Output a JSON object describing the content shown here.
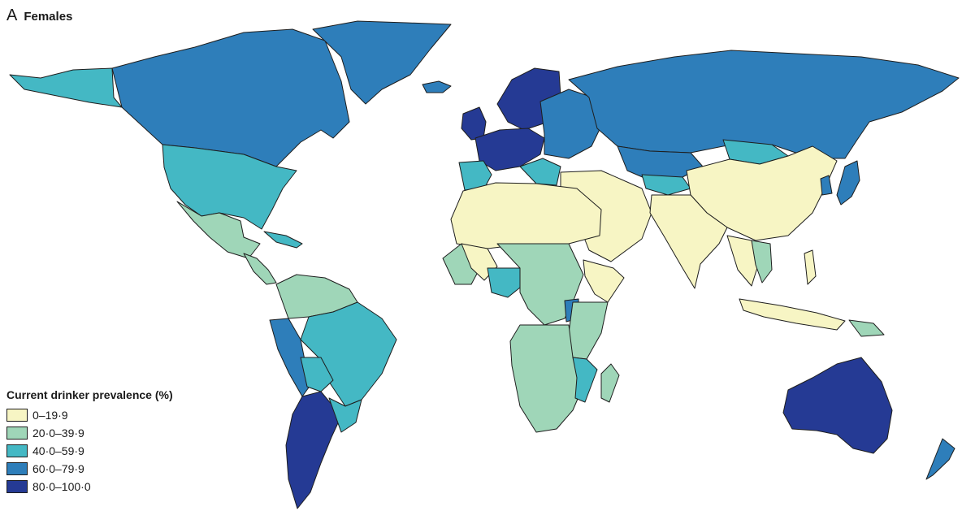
{
  "panel": {
    "letter": "A",
    "subtitle": "Females"
  },
  "legend": {
    "title": "Current drinker prevalence (%)",
    "items": [
      {
        "label": "0–19·9",
        "color": "#f7f5c4"
      },
      {
        "label": "20·0–39·9",
        "color": "#9fd6b8"
      },
      {
        "label": "40·0–59·9",
        "color": "#44b8c4"
      },
      {
        "label": "60·0–79·9",
        "color": "#2e7eba"
      },
      {
        "label": "80·0–100·0",
        "color": "#253a94"
      }
    ]
  },
  "regions": [
    {
      "name": "canada",
      "class": 3
    },
    {
      "name": "alaska",
      "class": 2
    },
    {
      "name": "greenland",
      "class": 3
    },
    {
      "name": "iceland",
      "class": 3
    },
    {
      "name": "usa",
      "class": 2
    },
    {
      "name": "mexico",
      "class": 1
    },
    {
      "name": "central-america",
      "class": 1
    },
    {
      "name": "caribbean-cuba",
      "class": 2
    },
    {
      "name": "colombia-venezuela",
      "class": 1
    },
    {
      "name": "brazil",
      "class": 2
    },
    {
      "name": "peru-ecuador",
      "class": 3
    },
    {
      "name": "bolivia",
      "class": 2
    },
    {
      "name": "argentina-chile",
      "class": 4
    },
    {
      "name": "uruguay-south-brazil",
      "class": 2
    },
    {
      "name": "scandinavia",
      "class": 4
    },
    {
      "name": "uk-ireland",
      "class": 4
    },
    {
      "name": "western-europe",
      "class": 4
    },
    {
      "name": "iberia",
      "class": 2
    },
    {
      "name": "eastern-europe",
      "class": 3
    },
    {
      "name": "balkans",
      "class": 2
    },
    {
      "name": "russia",
      "class": 3
    },
    {
      "name": "kazakhstan",
      "class": 3
    },
    {
      "name": "mongolia",
      "class": 2
    },
    {
      "name": "central-asia",
      "class": 2
    },
    {
      "name": "china",
      "class": 0
    },
    {
      "name": "korea",
      "class": 3
    },
    {
      "name": "japan",
      "class": 3
    },
    {
      "name": "middle-east",
      "class": 0
    },
    {
      "name": "south-asia",
      "class": 0
    },
    {
      "name": "mainland-se-asia",
      "class": 0
    },
    {
      "name": "vietnam-laos",
      "class": 1
    },
    {
      "name": "philippines",
      "class": 0
    },
    {
      "name": "indonesia",
      "class": 0
    },
    {
      "name": "papua-new-guinea",
      "class": 1
    },
    {
      "name": "north-africa",
      "class": 0
    },
    {
      "name": "west-africa-coast",
      "class": 1
    },
    {
      "name": "west-africa-inland",
      "class": 0
    },
    {
      "name": "nigeria",
      "class": 2
    },
    {
      "name": "central-africa",
      "class": 1
    },
    {
      "name": "east-africa",
      "class": 1
    },
    {
      "name": "horn-of-africa",
      "class": 0
    },
    {
      "name": "uganda",
      "class": 3
    },
    {
      "name": "southern-africa",
      "class": 1
    },
    {
      "name": "mozambique",
      "class": 2
    },
    {
      "name": "madagascar",
      "class": 1
    },
    {
      "name": "australia",
      "class": 4
    },
    {
      "name": "new-zealand",
      "class": 3
    }
  ]
}
